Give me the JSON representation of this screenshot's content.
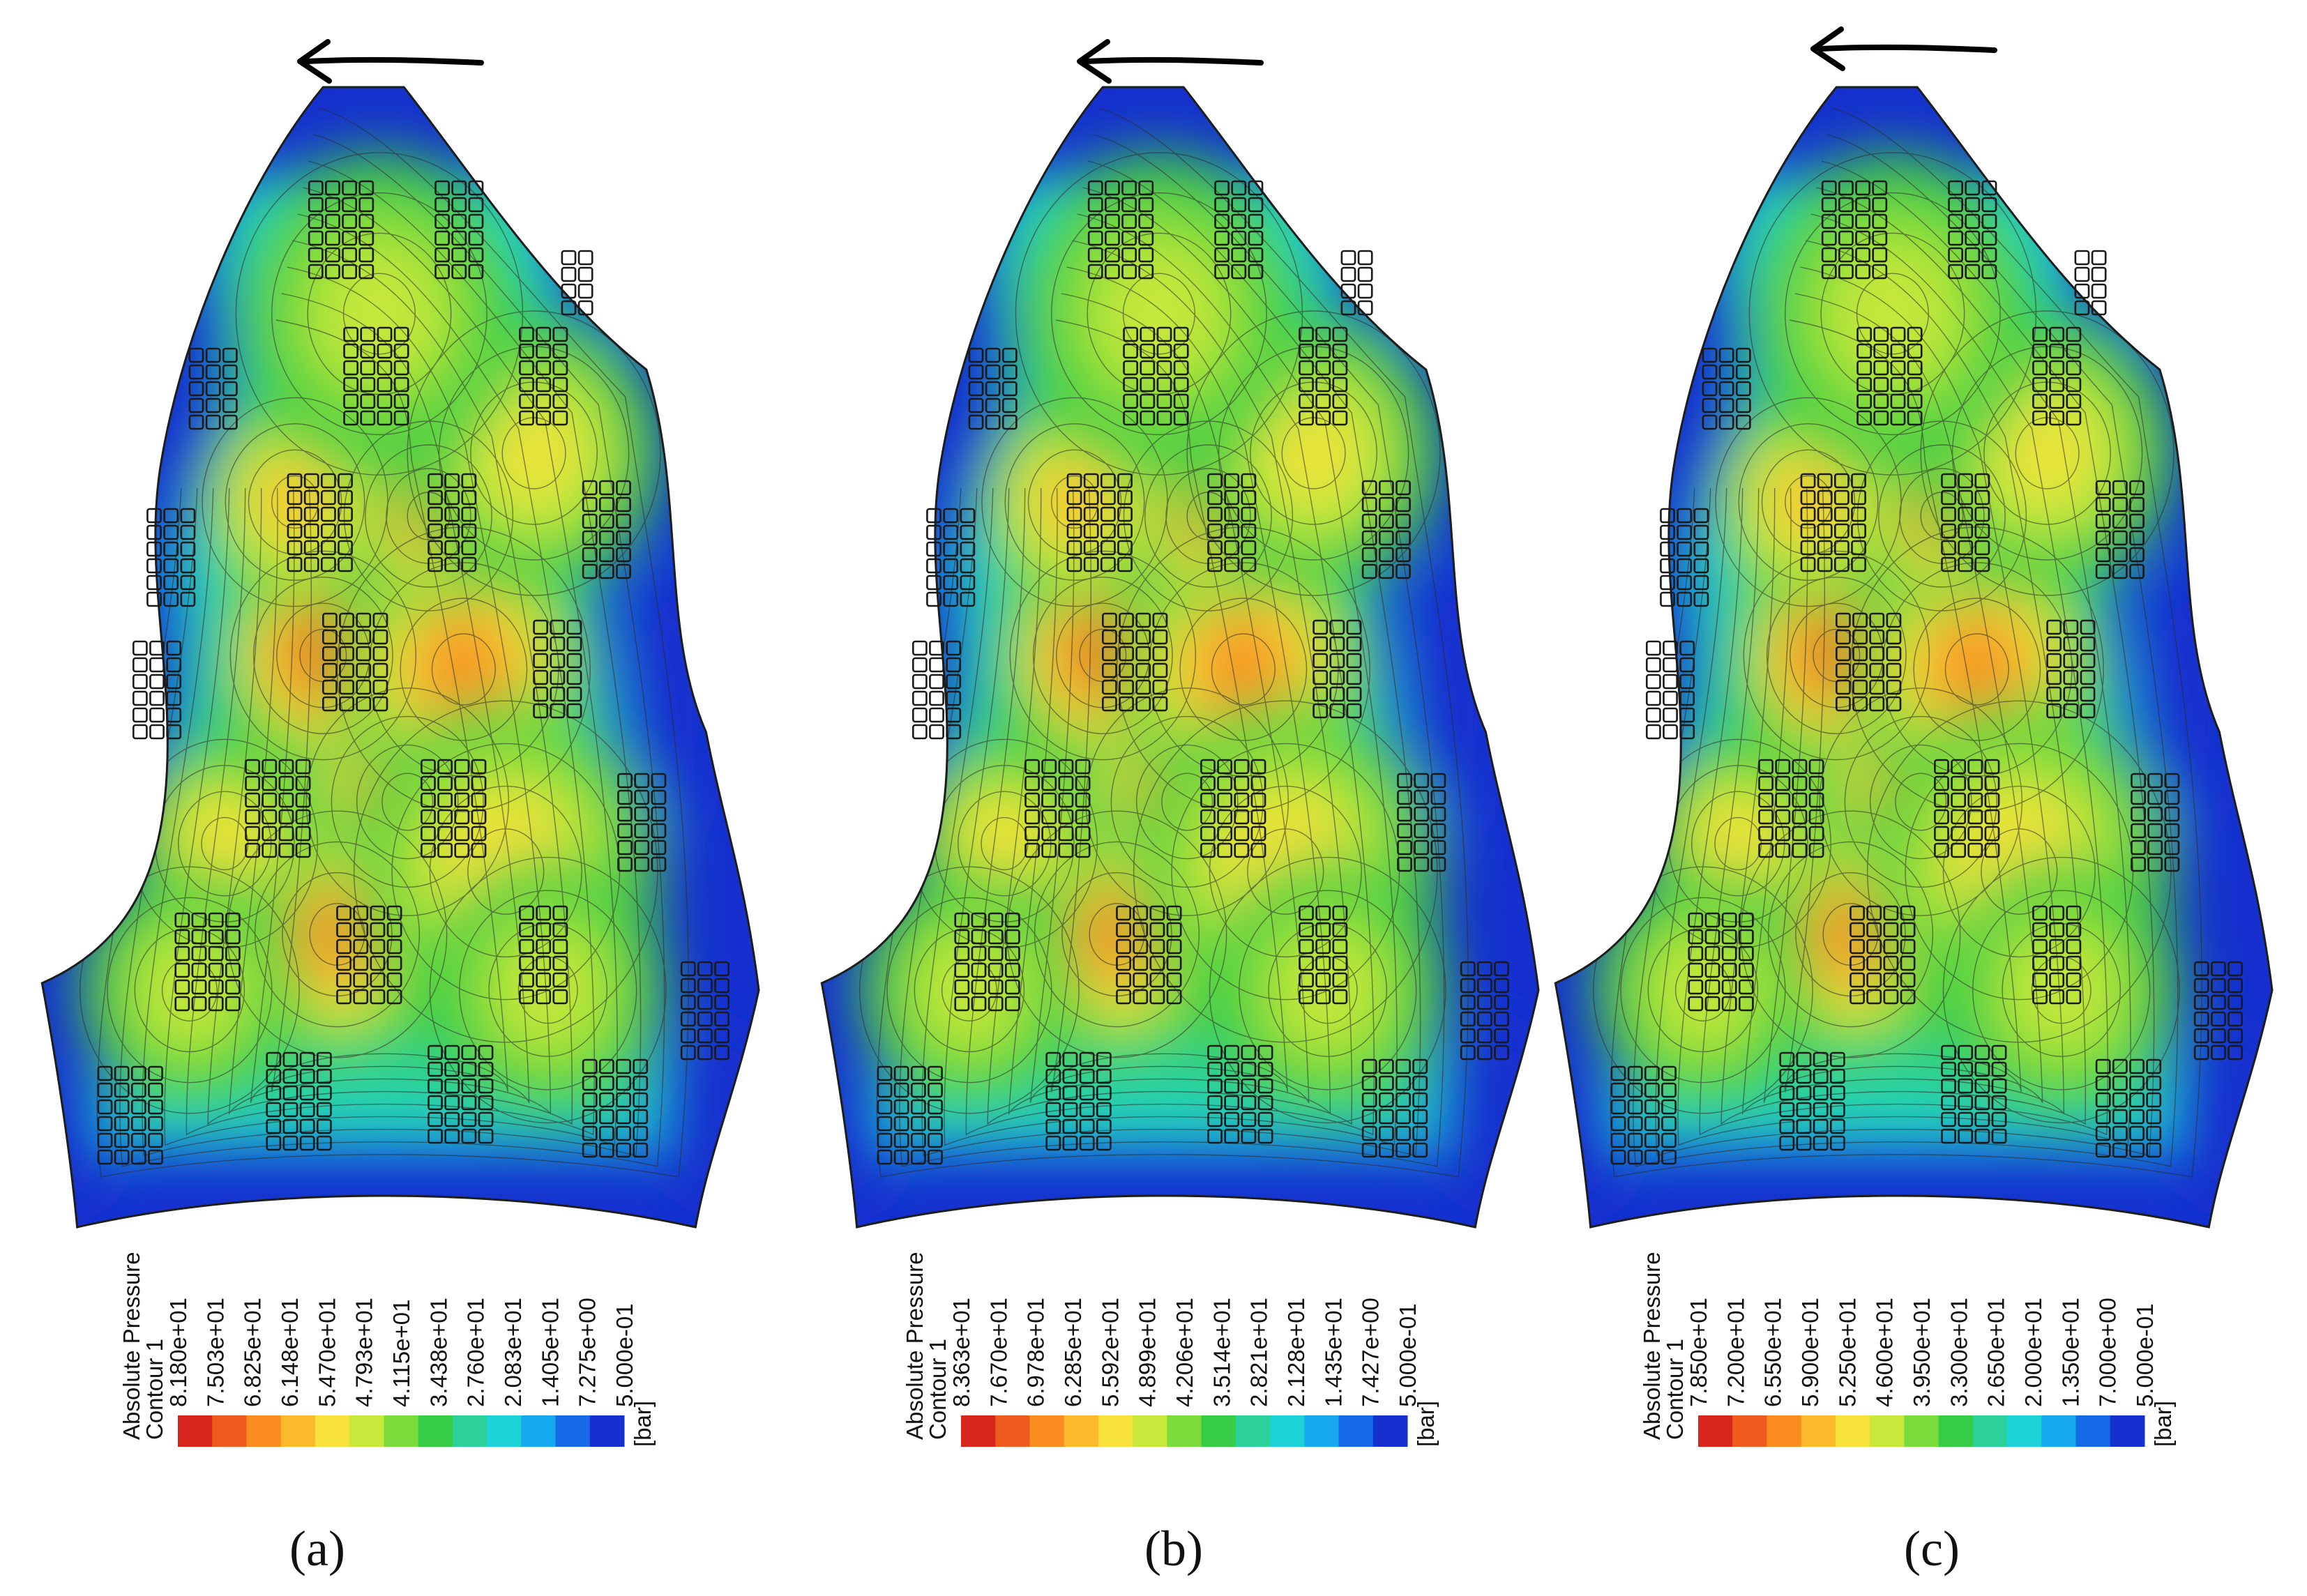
{
  "panels": [
    {
      "caption": "(a)",
      "legend_title": "Absolute Pressure",
      "legend_subtitle": "Contour 1",
      "unit": "[bar]",
      "ticks": [
        "8.180e+01",
        "7.503e+01",
        "6.825e+01",
        "6.148e+01",
        "5.470e+01",
        "4.793e+01",
        "4.115e+01",
        "3.438e+01",
        "2.760e+01",
        "2.083e+01",
        "1.405e+01",
        "7.275e+00",
        "5.000e-01"
      ]
    },
    {
      "caption": "(b)",
      "legend_title": "Absolute Pressure",
      "legend_subtitle": "Contour 1",
      "unit": "[bar]",
      "ticks": [
        "8.363e+01",
        "7.670e+01",
        "6.978e+01",
        "6.285e+01",
        "5.592e+01",
        "4.899e+01",
        "4.206e+01",
        "3.514e+01",
        "2.821e+01",
        "2.128e+01",
        "1.435e+01",
        "7.427e+00",
        "5.000e-01"
      ]
    },
    {
      "caption": "(c)",
      "legend_title": "Absolute Pressure",
      "legend_subtitle": "Contour 1",
      "unit": "[bar]",
      "ticks": [
        "7.850e+01",
        "7.200e+01",
        "6.550e+01",
        "5.900e+01",
        "5.250e+01",
        "4.600e+01",
        "3.950e+01",
        "3.300e+01",
        "2.650e+01",
        "2.000e+01",
        "1.350e+01",
        "7.000e+00",
        "5.000e-01"
      ]
    }
  ],
  "colors": {
    "colormap": [
      "#d7261e",
      "#ef5a1e",
      "#f98b1f",
      "#fbb92b",
      "#f6e23a",
      "#c8e83c",
      "#7bdb3b",
      "#36cc46",
      "#2cd19a",
      "#1bd3d6",
      "#17a9ef",
      "#1669e6",
      "#1530cf"
    ],
    "shape_edge": "#1a1a1a",
    "arrow": "#000000"
  }
}
